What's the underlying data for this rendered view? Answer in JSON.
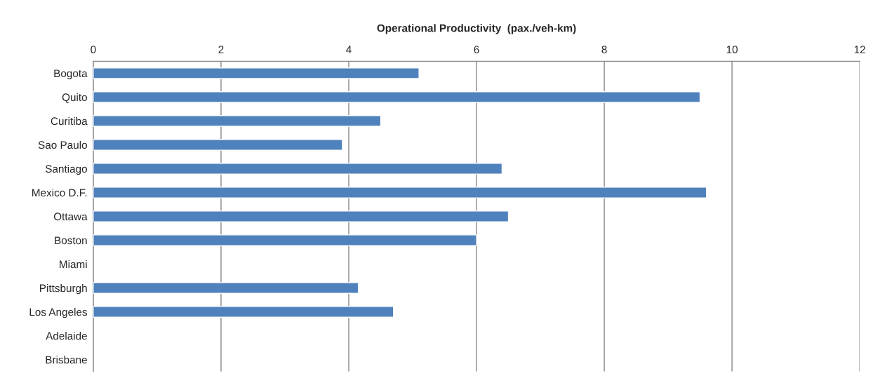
{
  "chart_data": {
    "type": "bar",
    "orientation": "horizontal",
    "xlabel": "Operational Productivity  (pax./veh-km)",
    "categories": [
      "Bogota",
      "Quito",
      "Curitiba",
      "Sao Paulo",
      "Santiago",
      "Mexico D.F.",
      "Ottawa",
      "Boston",
      "Miami",
      "Pittsburgh",
      "Los Angeles",
      "Adelaide",
      "Brisbane"
    ],
    "series": [
      {
        "color": "#4f81bd",
        "values": [
          5.1,
          9.5,
          4.5,
          3.9,
          6.4,
          9.6,
          6.5,
          6.0,
          null,
          4.15,
          4.7,
          null,
          null
        ]
      }
    ],
    "xlim": [
      0,
      12
    ],
    "xticks": [
      0,
      2,
      4,
      6,
      8,
      10,
      12
    ],
    "grid": "x"
  }
}
